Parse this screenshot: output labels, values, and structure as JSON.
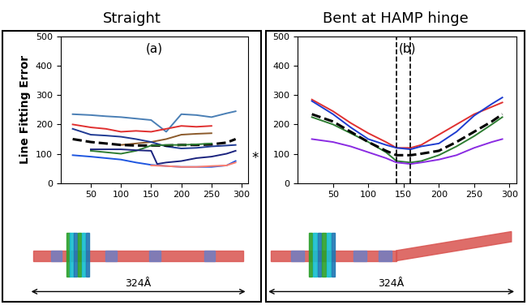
{
  "chart_data": [
    {
      "type": "line",
      "title": "Straight",
      "ylabel": "Line Fitting Error",
      "annotations": [
        "(a)",
        "*"
      ],
      "scale_label": "324Å",
      "xlim": [
        0,
        310
      ],
      "xticks": [
        50,
        100,
        150,
        200,
        250,
        300
      ],
      "ylim": [
        0,
        500
      ],
      "yticks": [
        0,
        100,
        200,
        300,
        400,
        500
      ],
      "series": [
        {
          "color": "#4a7fb5",
          "line_style": "solid",
          "x": [
            20,
            50,
            75,
            100,
            125,
            150,
            175,
            200,
            225,
            250,
            275,
            290
          ],
          "values": [
            235,
            232,
            228,
            225,
            220,
            215,
            175,
            235,
            232,
            225,
            238,
            245
          ]
        },
        {
          "color": "#e03030",
          "line_style": "solid",
          "x": [
            20,
            50,
            75,
            100,
            125,
            150,
            175,
            200,
            225,
            250
          ],
          "values": [
            200,
            190,
            185,
            175,
            178,
            175,
            185,
            195,
            192,
            195
          ]
        },
        {
          "color": "#8b5a2b",
          "line_style": "solid",
          "x": [
            100,
            125,
            150,
            175,
            200,
            225,
            250
          ],
          "values": [
            130,
            135,
            140,
            150,
            165,
            168,
            170
          ]
        },
        {
          "color": "#1f3a93",
          "line_style": "solid",
          "x": [
            20,
            50,
            75,
            100,
            125,
            150,
            175,
            200,
            225,
            250,
            275,
            290
          ],
          "values": [
            185,
            165,
            162,
            158,
            150,
            140,
            125,
            118,
            120,
            125,
            128,
            130
          ]
        },
        {
          "color": "#000000",
          "line_style": "dashed",
          "x": [
            20,
            50,
            75,
            100,
            125,
            150,
            175,
            200,
            225,
            250,
            275,
            290
          ],
          "values": [
            150,
            140,
            135,
            130,
            128,
            128,
            128,
            130,
            130,
            132,
            138,
            150
          ]
        },
        {
          "color": "#2e7d32",
          "line_style": "solid",
          "x": [
            50,
            75,
            100,
            125,
            150,
            175,
            200,
            225,
            250
          ],
          "values": [
            110,
            105,
            100,
            110,
            128,
            130,
            130,
            132,
            135
          ]
        },
        {
          "color": "#1a237e",
          "line_style": "solid",
          "x": [
            50,
            75,
            100,
            125,
            150,
            160,
            175,
            200,
            225,
            250,
            275,
            290
          ],
          "values": [
            115,
            115,
            115,
            112,
            110,
            65,
            70,
            75,
            85,
            90,
            100,
            110
          ]
        },
        {
          "color": "#1e56e0",
          "line_style": "solid",
          "x": [
            20,
            50,
            75,
            100,
            125,
            150,
            175,
            200,
            225,
            250,
            275,
            290
          ],
          "values": [
            95,
            90,
            85,
            80,
            70,
            62,
            58,
            55,
            55,
            55,
            60,
            75
          ]
        },
        {
          "color": "#ff7f6e",
          "line_style": "solid",
          "x": [
            150,
            175,
            200,
            225,
            250,
            275,
            290
          ],
          "values": [
            60,
            58,
            55,
            55,
            58,
            60,
            70
          ]
        }
      ]
    },
    {
      "type": "line",
      "title": "Bent at HAMP hinge",
      "annotations": [
        "(b)"
      ],
      "scale_label": "324Å",
      "vlines": [
        140,
        160
      ],
      "xlim": [
        0,
        310
      ],
      "xticks": [
        50,
        100,
        150,
        200,
        250,
        300
      ],
      "ylim": [
        0,
        500
      ],
      "yticks": [
        0,
        100,
        200,
        300,
        400,
        500
      ],
      "series": [
        {
          "color": "#e03030",
          "line_style": "solid",
          "x": [
            20,
            50,
            75,
            100,
            125,
            140,
            160,
            175,
            200,
            225,
            250,
            275,
            290
          ],
          "values": [
            285,
            245,
            205,
            170,
            140,
            120,
            120,
            130,
            165,
            200,
            235,
            260,
            275
          ]
        },
        {
          "color": "#1e3cd0",
          "line_style": "solid",
          "x": [
            20,
            50,
            75,
            100,
            125,
            140,
            160,
            175,
            200,
            225,
            250,
            275,
            290
          ],
          "values": [
            280,
            235,
            190,
            150,
            130,
            120,
            115,
            125,
            135,
            175,
            230,
            270,
            292
          ]
        },
        {
          "color": "#2e7d32",
          "line_style": "solid",
          "x": [
            20,
            50,
            75,
            100,
            125,
            140,
            160,
            175,
            200,
            225,
            250,
            275,
            290
          ],
          "values": [
            225,
            200,
            170,
            140,
            105,
            75,
            70,
            75,
            95,
            125,
            160,
            200,
            225
          ]
        },
        {
          "color": "#000000",
          "line_style": "dashed",
          "x": [
            20,
            50,
            75,
            100,
            125,
            140,
            160,
            175,
            200,
            225,
            250,
            275,
            290
          ],
          "values": [
            235,
            210,
            175,
            140,
            110,
            95,
            95,
            100,
            110,
            140,
            175,
            210,
            235
          ]
        },
        {
          "color": "#8a2be2",
          "line_style": "solid",
          "x": [
            20,
            50,
            75,
            100,
            125,
            140,
            160,
            175,
            200,
            225,
            250,
            275,
            290
          ],
          "values": [
            150,
            140,
            125,
            105,
            85,
            70,
            65,
            70,
            80,
            95,
            120,
            140,
            150
          ]
        }
      ]
    }
  ]
}
